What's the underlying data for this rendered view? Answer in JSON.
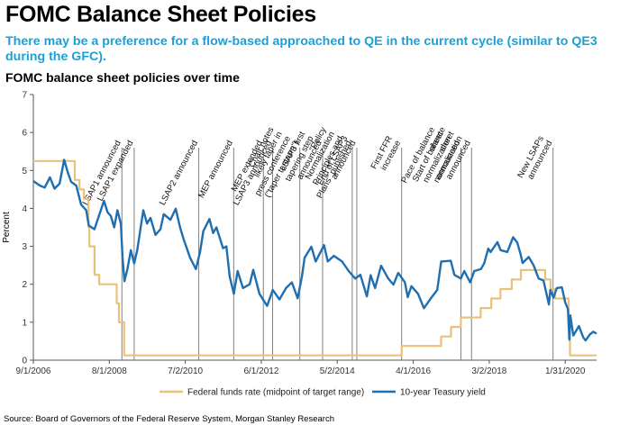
{
  "header": {
    "title": "FOMC Balance Sheet Policies",
    "subtitle": "There may be a preference for a flow-based approached to QE in the current cycle (similar to QE3 during the GFC).",
    "chart_title": "FOMC balance sheet policies over time"
  },
  "footer": {
    "source": "Source: Board of Governors of the Federal Reserve System, Morgan Stanley Research"
  },
  "colors": {
    "fed_funds": "#e8c27a",
    "treasury": "#1f6fb0",
    "subtitle": "#1a9fd6",
    "event_line": "#808080"
  },
  "chart_data": {
    "type": "line",
    "title": "FOMC balance sheet policies over time",
    "xlabel": "",
    "ylabel": "Percent",
    "ylim": [
      0,
      7
    ],
    "xlim": [
      "2006-09-01",
      "2020-11-15"
    ],
    "yticks": [
      0,
      1,
      2,
      3,
      4,
      5,
      6,
      7
    ],
    "xticks": [
      "9/1/2006",
      "8/1/2008",
      "7/2/2010",
      "6/1/2012",
      "5/2/2014",
      "4/1/2016",
      "3/2/2018",
      "1/31/2020"
    ],
    "xtick_dates": [
      "2006-09-01",
      "2008-08-01",
      "2010-07-02",
      "2012-06-01",
      "2014-05-02",
      "2016-04-01",
      "2018-03-02",
      "2020-01-31"
    ],
    "grid": false,
    "legend_position": "bottom",
    "series": [
      {
        "name": "Federal funds rate (midpoint of target range)",
        "color": "#e8c27a",
        "step": true,
        "points": [
          [
            "2006-09-01",
            5.25
          ],
          [
            "2007-09-18",
            4.75
          ],
          [
            "2007-10-31",
            4.5
          ],
          [
            "2007-12-11",
            4.25
          ],
          [
            "2008-01-22",
            3.5
          ],
          [
            "2008-01-30",
            3.0
          ],
          [
            "2008-03-18",
            2.25
          ],
          [
            "2008-04-30",
            2.0
          ],
          [
            "2008-10-08",
            1.5
          ],
          [
            "2008-10-29",
            1.0
          ],
          [
            "2008-12-16",
            0.125
          ],
          [
            "2015-12-16",
            0.375
          ],
          [
            "2016-12-14",
            0.625
          ],
          [
            "2017-03-15",
            0.875
          ],
          [
            "2017-06-14",
            1.125
          ],
          [
            "2017-12-13",
            1.375
          ],
          [
            "2018-03-21",
            1.625
          ],
          [
            "2018-06-13",
            1.875
          ],
          [
            "2018-09-26",
            2.125
          ],
          [
            "2018-12-19",
            2.375
          ],
          [
            "2019-07-31",
            2.125
          ],
          [
            "2019-09-18",
            1.875
          ],
          [
            "2019-10-30",
            1.625
          ],
          [
            "2020-03-03",
            1.125
          ],
          [
            "2020-03-15",
            0.125
          ],
          [
            "2020-11-15",
            0.125
          ]
        ]
      },
      {
        "name": "10-year Teasury yield",
        "color": "#1f6fb0",
        "points": [
          [
            "2006-09-01",
            4.72
          ],
          [
            "2006-11-01",
            4.6
          ],
          [
            "2006-12-15",
            4.55
          ],
          [
            "2007-02-01",
            4.82
          ],
          [
            "2007-03-15",
            4.52
          ],
          [
            "2007-05-01",
            4.65
          ],
          [
            "2007-06-12",
            5.28
          ],
          [
            "2007-07-15",
            4.95
          ],
          [
            "2007-08-15",
            4.7
          ],
          [
            "2007-10-01",
            4.6
          ],
          [
            "2007-11-15",
            4.1
          ],
          [
            "2008-01-01",
            3.95
          ],
          [
            "2008-01-25",
            3.55
          ],
          [
            "2008-03-17",
            3.45
          ],
          [
            "2008-04-15",
            3.7
          ],
          [
            "2008-06-13",
            4.2
          ],
          [
            "2008-07-15",
            3.9
          ],
          [
            "2008-08-15",
            3.8
          ],
          [
            "2008-09-15",
            3.5
          ],
          [
            "2008-10-15",
            3.95
          ],
          [
            "2008-11-15",
            3.6
          ],
          [
            "2008-12-01",
            2.7
          ],
          [
            "2008-12-18",
            2.08
          ],
          [
            "2009-01-15",
            2.4
          ],
          [
            "2009-02-15",
            2.9
          ],
          [
            "2009-03-18",
            2.55
          ],
          [
            "2009-04-15",
            2.9
          ],
          [
            "2009-06-10",
            3.95
          ],
          [
            "2009-07-15",
            3.6
          ],
          [
            "2009-08-15",
            3.75
          ],
          [
            "2009-10-01",
            3.3
          ],
          [
            "2009-11-15",
            3.45
          ],
          [
            "2009-12-15",
            3.85
          ],
          [
            "2010-02-15",
            3.7
          ],
          [
            "2010-04-05",
            3.99
          ],
          [
            "2010-05-15",
            3.5
          ],
          [
            "2010-06-15",
            3.2
          ],
          [
            "2010-08-15",
            2.7
          ],
          [
            "2010-10-08",
            2.4
          ],
          [
            "2010-11-15",
            2.85
          ],
          [
            "2010-12-15",
            3.4
          ],
          [
            "2011-02-09",
            3.72
          ],
          [
            "2011-03-15",
            3.35
          ],
          [
            "2011-04-15",
            3.5
          ],
          [
            "2011-06-15",
            2.95
          ],
          [
            "2011-07-15",
            3.0
          ],
          [
            "2011-08-15",
            2.2
          ],
          [
            "2011-09-22",
            1.75
          ],
          [
            "2011-10-27",
            2.35
          ],
          [
            "2011-12-15",
            1.9
          ],
          [
            "2012-02-15",
            2.0
          ],
          [
            "2012-03-19",
            2.38
          ],
          [
            "2012-05-15",
            1.75
          ],
          [
            "2012-07-25",
            1.43
          ],
          [
            "2012-09-15",
            1.85
          ],
          [
            "2012-11-15",
            1.6
          ],
          [
            "2013-01-15",
            1.9
          ],
          [
            "2013-03-10",
            2.05
          ],
          [
            "2013-05-02",
            1.63
          ],
          [
            "2013-06-10",
            2.2
          ],
          [
            "2013-07-05",
            2.7
          ],
          [
            "2013-09-05",
            2.99
          ],
          [
            "2013-10-15",
            2.6
          ],
          [
            "2013-12-31",
            3.03
          ],
          [
            "2014-02-03",
            2.6
          ],
          [
            "2014-04-01",
            2.75
          ],
          [
            "2014-06-15",
            2.6
          ],
          [
            "2014-08-15",
            2.35
          ],
          [
            "2014-10-15",
            2.15
          ],
          [
            "2014-12-01",
            2.25
          ],
          [
            "2015-01-30",
            1.68
          ],
          [
            "2015-03-06",
            2.24
          ],
          [
            "2015-04-15",
            1.9
          ],
          [
            "2015-06-10",
            2.49
          ],
          [
            "2015-08-15",
            2.15
          ],
          [
            "2015-10-02",
            1.99
          ],
          [
            "2015-11-15",
            2.3
          ],
          [
            "2016-01-15",
            2.05
          ],
          [
            "2016-02-11",
            1.66
          ],
          [
            "2016-03-15",
            1.95
          ],
          [
            "2016-05-15",
            1.75
          ],
          [
            "2016-07-08",
            1.37
          ],
          [
            "2016-09-15",
            1.65
          ],
          [
            "2016-11-08",
            1.85
          ],
          [
            "2016-12-15",
            2.6
          ],
          [
            "2017-03-13",
            2.62
          ],
          [
            "2017-04-15",
            2.25
          ],
          [
            "2017-06-14",
            2.15
          ],
          [
            "2017-07-15",
            2.35
          ],
          [
            "2017-09-07",
            2.05
          ],
          [
            "2017-10-15",
            2.35
          ],
          [
            "2017-12-15",
            2.4
          ],
          [
            "2018-01-15",
            2.55
          ],
          [
            "2018-02-21",
            2.94
          ],
          [
            "2018-03-15",
            2.85
          ],
          [
            "2018-05-17",
            3.11
          ],
          [
            "2018-06-15",
            2.9
          ],
          [
            "2018-08-15",
            2.85
          ],
          [
            "2018-10-08",
            3.24
          ],
          [
            "2018-11-15",
            3.1
          ],
          [
            "2018-12-15",
            2.8
          ],
          [
            "2019-01-03",
            2.56
          ],
          [
            "2019-03-01",
            2.72
          ],
          [
            "2019-04-15",
            2.5
          ],
          [
            "2019-06-01",
            2.15
          ],
          [
            "2019-07-15",
            2.1
          ],
          [
            "2019-09-03",
            1.47
          ],
          [
            "2019-09-16",
            1.85
          ],
          [
            "2019-10-15",
            1.65
          ],
          [
            "2019-11-15",
            1.9
          ],
          [
            "2019-12-31",
            1.92
          ],
          [
            "2020-01-31",
            1.52
          ],
          [
            "2020-02-25",
            1.35
          ],
          [
            "2020-03-09",
            0.54
          ],
          [
            "2020-03-18",
            1.18
          ],
          [
            "2020-04-15",
            0.65
          ],
          [
            "2020-06-05",
            0.9
          ],
          [
            "2020-07-15",
            0.6
          ],
          [
            "2020-08-06",
            0.52
          ],
          [
            "2020-09-15",
            0.68
          ],
          [
            "2020-10-15",
            0.75
          ],
          [
            "2020-11-15",
            0.7
          ]
        ]
      }
    ],
    "annotations": [
      {
        "date": "2008-11-25",
        "label": "LSAP1 announced"
      },
      {
        "date": "2009-03-18",
        "label": "LSAP1 expanded"
      },
      {
        "date": "2010-11-03",
        "label": "LSAP2 announced"
      },
      {
        "date": "2011-09-21",
        "label": "MEP announced"
      },
      {
        "date": "2012-06-20",
        "label": "MEP extended"
      },
      {
        "date": "2012-09-13",
        "label": "LSAP3 announced"
      },
      {
        "date": "2013-05-22",
        "label": "Chair notes likely taper in press conference (\"taper tantrum\")"
      },
      {
        "date": "2013-12-18",
        "label": "LSAP3 first tapering step announced"
      },
      {
        "date": "2014-09-17",
        "label": "\"Policy Normalization Principles and Plans\" published"
      },
      {
        "date": "2014-10-29",
        "label": "End of LSAP3 announced"
      },
      {
        "date": "2015-12-16",
        "label": "First FFR increase"
      },
      {
        "date": "2017-06-14",
        "label": "Pace of balance sheet normalization announced"
      },
      {
        "date": "2017-09-20",
        "label": "Start of balance sheet normalization announced"
      },
      {
        "date": "2019-10-11",
        "label": "New LSAPs announced"
      }
    ]
  }
}
